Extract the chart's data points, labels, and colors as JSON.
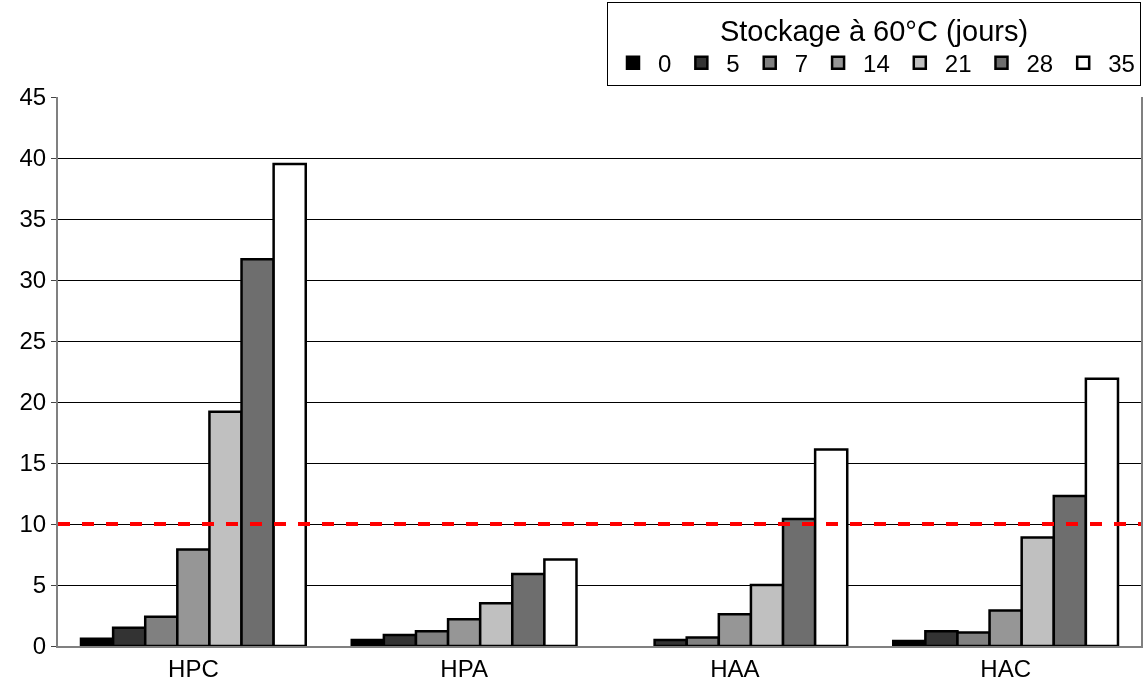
{
  "chart_data": {
    "type": "bar",
    "legend_title": "Stockage à 60°C (jours)",
    "categories": [
      "HPC",
      "HPA",
      "HAA",
      "HAC"
    ],
    "series": [
      {
        "name": "0",
        "color": "#000000",
        "values": [
          0.6,
          0.5,
          null,
          0.4
        ]
      },
      {
        "name": "5",
        "color": "#333333",
        "values": [
          1.5,
          0.9,
          0.5,
          1.2
        ]
      },
      {
        "name": "7",
        "color": "#808080",
        "values": [
          2.4,
          1.2,
          0.7,
          1.1
        ]
      },
      {
        "name": "14",
        "color": "#969696",
        "values": [
          7.9,
          2.2,
          2.6,
          2.9
        ]
      },
      {
        "name": "21",
        "color": "#c0c0c0",
        "values": [
          19.2,
          3.5,
          5.0,
          8.9
        ]
      },
      {
        "name": "28",
        "color": "#6e6e6e",
        "values": [
          31.7,
          5.9,
          10.4,
          12.3
        ]
      },
      {
        "name": "35",
        "color": "#ffffff",
        "values": [
          39.5,
          7.1,
          16.1,
          21.9
        ]
      }
    ],
    "ylim": [
      0,
      45
    ],
    "yticks": [
      0,
      5,
      10,
      15,
      20,
      25,
      30,
      35,
      40,
      45
    ],
    "ref_lines": [
      {
        "axis": "y",
        "value": 10,
        "color": "#ff0000",
        "line_style": "dashed"
      }
    ],
    "grid": "y",
    "legend": "top right"
  }
}
